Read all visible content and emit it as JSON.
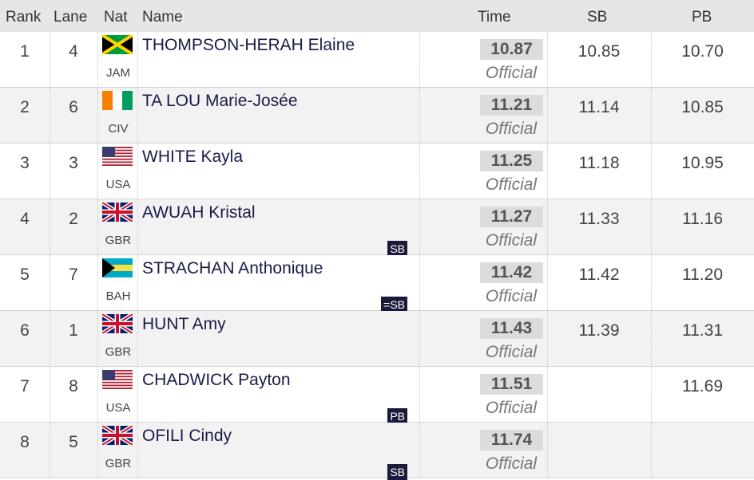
{
  "table": {
    "headers": [
      "Rank",
      "Lane",
      "Nat",
      "Name",
      "Time",
      "SB",
      "PB"
    ],
    "rows": [
      {
        "rank": "1",
        "lane": "4",
        "nat": "JAM",
        "name": "THOMPSON-HERAH Elaine",
        "time": "10.87",
        "status": "Official",
        "sb": "10.85",
        "pb": "10.70",
        "badge": null
      },
      {
        "rank": "2",
        "lane": "6",
        "nat": "CIV",
        "name": "TA LOU Marie-Josée",
        "time": "11.21",
        "status": "Official",
        "sb": "11.14",
        "pb": "10.85",
        "badge": null
      },
      {
        "rank": "3",
        "lane": "3",
        "nat": "USA",
        "name": "WHITE Kayla",
        "time": "11.25",
        "status": "Official",
        "sb": "11.18",
        "pb": "10.95",
        "badge": null
      },
      {
        "rank": "4",
        "lane": "2",
        "nat": "GBR",
        "name": "AWUAH Kristal",
        "time": "11.27",
        "status": "Official",
        "sb": "11.33",
        "pb": "11.16",
        "badge": "SB"
      },
      {
        "rank": "5",
        "lane": "7",
        "nat": "BAH",
        "name": "STRACHAN Anthonique",
        "time": "11.42",
        "status": "Official",
        "sb": "11.42",
        "pb": "11.20",
        "badge": "=SB"
      },
      {
        "rank": "6",
        "lane": "1",
        "nat": "GBR",
        "name": "HUNT Amy",
        "time": "11.43",
        "status": "Official",
        "sb": "11.39",
        "pb": "11.31",
        "badge": null
      },
      {
        "rank": "7",
        "lane": "8",
        "nat": "USA",
        "name": "CHADWICK Payton",
        "time": "11.51",
        "status": "Official",
        "sb": null,
        "pb": "11.69",
        "badge": "PB"
      },
      {
        "rank": "8",
        "lane": "5",
        "nat": "GBR",
        "name": "OFILI Cindy",
        "time": "11.74",
        "status": "Official",
        "sb": null,
        "pb": null,
        "badge": "SB"
      }
    ]
  }
}
